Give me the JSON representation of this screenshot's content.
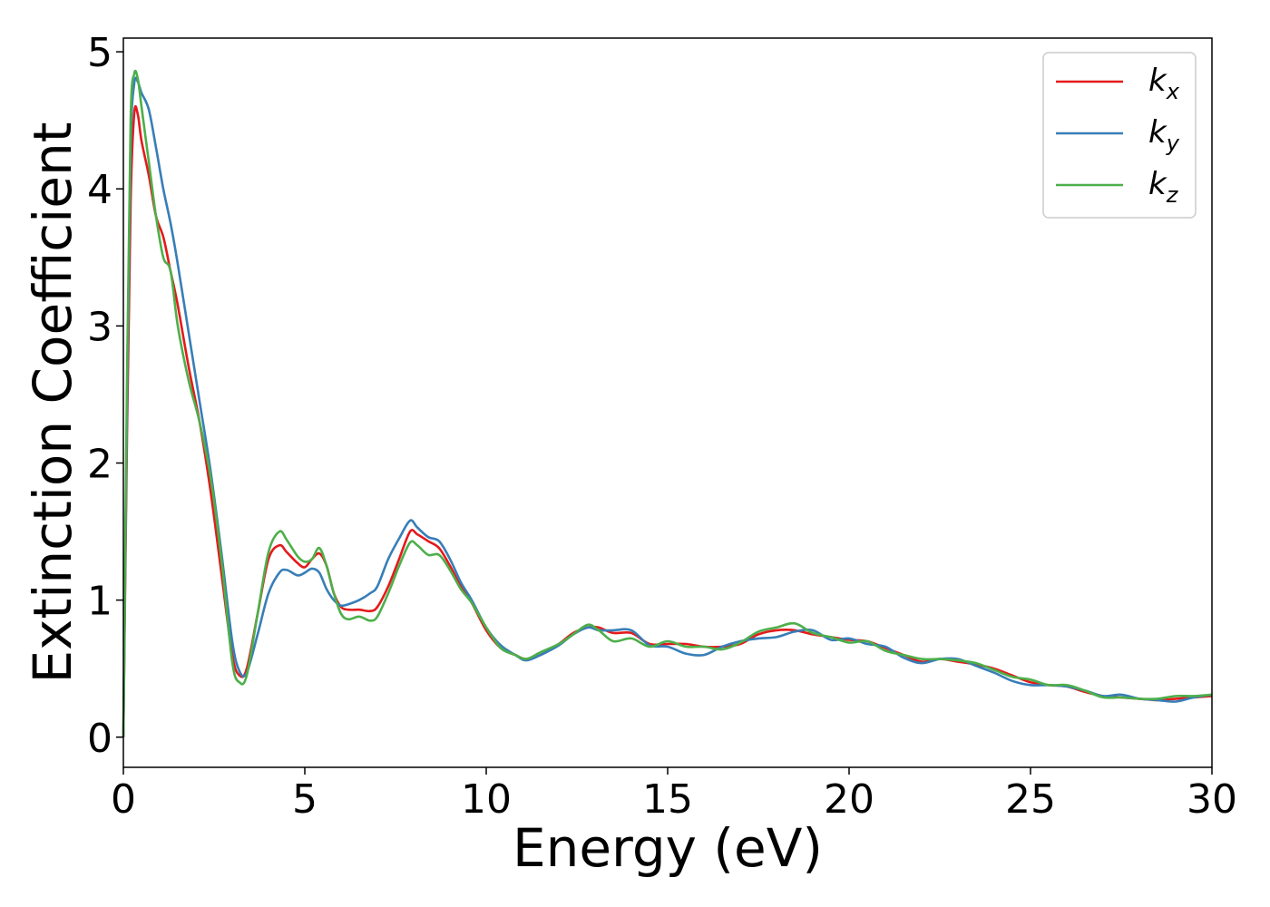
{
  "chart_data": {
    "type": "line",
    "xlabel": "Energy (eV)",
    "ylabel": "Extinction Coefficient",
    "xlim": [
      0,
      30
    ],
    "ylim": [
      -0.22,
      5.1
    ],
    "xticks": [
      "0",
      "5",
      "10",
      "15",
      "20",
      "25",
      "30"
    ],
    "yticks": [
      "0",
      "1",
      "2",
      "3",
      "4",
      "5"
    ],
    "grid": false,
    "legend_position": "top-right",
    "series": [
      {
        "name": "k",
        "subscript": "x",
        "color": "#e41a1c",
        "x": [
          0,
          0.1,
          0.2,
          0.3,
          0.4,
          0.5,
          0.7,
          0.9,
          1.1,
          1.3,
          1.5,
          1.8,
          2.1,
          2.4,
          2.7,
          3.0,
          3.2,
          3.4,
          3.7,
          4.0,
          4.3,
          4.5,
          4.8,
          5.0,
          5.2,
          5.4,
          5.6,
          5.8,
          6.0,
          6.2,
          6.5,
          6.8,
          7.0,
          7.3,
          7.6,
          7.9,
          8.1,
          8.4,
          8.7,
          9.0,
          9.3,
          9.6,
          10.0,
          10.4,
          10.8,
          11.1,
          11.5,
          12.0,
          12.4,
          12.8,
          13.1,
          13.5,
          14.0,
          14.5,
          15.0,
          15.5,
          16.0,
          16.5,
          17.0,
          17.5,
          18.0,
          18.5,
          19.0,
          19.5,
          20.0,
          20.5,
          21.0,
          21.5,
          22.0,
          22.5,
          23.0,
          23.5,
          24.0,
          24.5,
          25.0,
          25.5,
          26.0,
          26.5,
          27.0,
          27.5,
          28.0,
          28.5,
          29.0,
          29.5,
          30.0
        ],
        "values": [
          0,
          2.2,
          3.9,
          4.55,
          4.54,
          4.35,
          4.1,
          3.8,
          3.65,
          3.4,
          3.15,
          2.7,
          2.3,
          1.8,
          1.2,
          0.6,
          0.45,
          0.5,
          0.9,
          1.3,
          1.4,
          1.35,
          1.27,
          1.24,
          1.3,
          1.34,
          1.25,
          1.05,
          0.95,
          0.93,
          0.93,
          0.92,
          0.95,
          1.1,
          1.3,
          1.5,
          1.48,
          1.43,
          1.38,
          1.25,
          1.1,
          0.98,
          0.78,
          0.65,
          0.6,
          0.57,
          0.6,
          0.68,
          0.76,
          0.8,
          0.8,
          0.76,
          0.76,
          0.68,
          0.68,
          0.68,
          0.66,
          0.66,
          0.68,
          0.75,
          0.78,
          0.78,
          0.75,
          0.73,
          0.71,
          0.7,
          0.65,
          0.6,
          0.55,
          0.57,
          0.55,
          0.53,
          0.5,
          0.45,
          0.4,
          0.38,
          0.37,
          0.33,
          0.3,
          0.29,
          0.28,
          0.27,
          0.28,
          0.29,
          0.3
        ]
      },
      {
        "name": "k",
        "subscript": "y",
        "color": "#377eb8",
        "x": [
          0,
          0.1,
          0.2,
          0.3,
          0.4,
          0.5,
          0.7,
          0.9,
          1.1,
          1.3,
          1.5,
          1.8,
          2.1,
          2.4,
          2.7,
          3.0,
          3.2,
          3.4,
          3.7,
          4.0,
          4.3,
          4.5,
          4.8,
          5.0,
          5.2,
          5.4,
          5.6,
          5.8,
          6.0,
          6.2,
          6.5,
          6.8,
          7.0,
          7.3,
          7.6,
          7.9,
          8.1,
          8.4,
          8.7,
          9.0,
          9.3,
          9.6,
          10.0,
          10.4,
          10.8,
          11.1,
          11.5,
          12.0,
          12.4,
          12.8,
          13.1,
          13.5,
          14.0,
          14.5,
          15.0,
          15.5,
          16.0,
          16.5,
          17.0,
          17.5,
          18.0,
          18.5,
          19.0,
          19.5,
          20.0,
          20.5,
          21.0,
          21.5,
          22.0,
          22.5,
          23.0,
          23.5,
          24.0,
          24.5,
          25.0,
          25.5,
          26.0,
          26.5,
          27.0,
          27.5,
          28.0,
          28.5,
          29.0,
          29.5,
          30.0
        ],
        "values": [
          0,
          2.4,
          4.3,
          4.77,
          4.78,
          4.7,
          4.58,
          4.3,
          4.0,
          3.75,
          3.45,
          2.95,
          2.45,
          1.95,
          1.35,
          0.7,
          0.48,
          0.47,
          0.75,
          1.05,
          1.2,
          1.22,
          1.18,
          1.2,
          1.23,
          1.2,
          1.08,
          1.0,
          0.96,
          0.97,
          1.0,
          1.05,
          1.1,
          1.3,
          1.45,
          1.58,
          1.53,
          1.46,
          1.43,
          1.3,
          1.13,
          1.0,
          0.8,
          0.67,
          0.6,
          0.56,
          0.6,
          0.67,
          0.75,
          0.8,
          0.78,
          0.78,
          0.78,
          0.67,
          0.66,
          0.61,
          0.6,
          0.66,
          0.7,
          0.72,
          0.73,
          0.77,
          0.78,
          0.71,
          0.72,
          0.68,
          0.66,
          0.58,
          0.54,
          0.57,
          0.57,
          0.52,
          0.47,
          0.41,
          0.38,
          0.38,
          0.37,
          0.34,
          0.3,
          0.31,
          0.28,
          0.27,
          0.26,
          0.29,
          0.31
        ]
      },
      {
        "name": "k",
        "subscript": "z",
        "color": "#4daf4a",
        "x": [
          0,
          0.1,
          0.2,
          0.3,
          0.4,
          0.5,
          0.7,
          0.9,
          1.1,
          1.3,
          1.5,
          1.8,
          2.1,
          2.4,
          2.7,
          3.0,
          3.2,
          3.4,
          3.7,
          4.0,
          4.3,
          4.5,
          4.8,
          5.0,
          5.2,
          5.4,
          5.6,
          5.8,
          6.0,
          6.2,
          6.5,
          6.8,
          7.0,
          7.3,
          7.6,
          7.9,
          8.1,
          8.4,
          8.7,
          9.0,
          9.3,
          9.6,
          10.0,
          10.4,
          10.8,
          11.1,
          11.5,
          12.0,
          12.4,
          12.8,
          13.1,
          13.5,
          14.0,
          14.5,
          15.0,
          15.5,
          16.0,
          16.5,
          17.0,
          17.5,
          18.0,
          18.5,
          19.0,
          19.5,
          20.0,
          20.5,
          21.0,
          21.5,
          22.0,
          22.5,
          23.0,
          23.5,
          24.0,
          24.5,
          25.0,
          25.5,
          26.0,
          26.5,
          27.0,
          27.5,
          28.0,
          28.5,
          29.0,
          29.5,
          30.0
        ],
        "values": [
          0,
          2.6,
          4.5,
          4.84,
          4.8,
          4.6,
          4.2,
          3.8,
          3.5,
          3.4,
          3.0,
          2.6,
          2.3,
          1.9,
          1.3,
          0.55,
          0.4,
          0.45,
          0.9,
          1.35,
          1.5,
          1.44,
          1.32,
          1.28,
          1.3,
          1.38,
          1.25,
          1.05,
          0.9,
          0.86,
          0.88,
          0.85,
          0.88,
          1.05,
          1.25,
          1.42,
          1.4,
          1.33,
          1.33,
          1.22,
          1.08,
          0.98,
          0.8,
          0.65,
          0.6,
          0.57,
          0.62,
          0.68,
          0.75,
          0.82,
          0.78,
          0.7,
          0.72,
          0.66,
          0.7,
          0.66,
          0.66,
          0.64,
          0.69,
          0.77,
          0.8,
          0.83,
          0.76,
          0.73,
          0.69,
          0.7,
          0.63,
          0.6,
          0.57,
          0.57,
          0.56,
          0.54,
          0.49,
          0.44,
          0.42,
          0.38,
          0.38,
          0.34,
          0.29,
          0.29,
          0.28,
          0.28,
          0.3,
          0.3,
          0.31
        ]
      }
    ]
  }
}
